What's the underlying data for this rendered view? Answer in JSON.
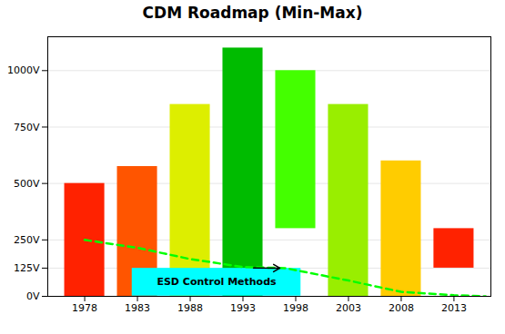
{
  "chart_data": {
    "type": "bar",
    "title": "CDM Roadmap (Min-Max)",
    "x": [
      1978,
      1983,
      1988,
      1993,
      1998,
      2003,
      2008,
      2013
    ],
    "series": [
      {
        "type": "bar",
        "values": [
          500,
          575,
          850,
          1100,
          1000,
          850,
          600,
          300
        ],
        "base": [
          0,
          0,
          0,
          0,
          300,
          0,
          0,
          125
        ],
        "colors": [
          "#FF2200",
          "#FF5500",
          "#DDEE00",
          "#00BB00",
          "#44FF00",
          "#99EE00",
          "#FFCC00",
          "#FF2200"
        ]
      },
      {
        "type": "line",
        "x": [
          1978,
          1983,
          1988,
          1993,
          1997,
          2003,
          2008,
          2013,
          2016
        ],
        "values": [
          250,
          215,
          165,
          130,
          125,
          70,
          20,
          5,
          0
        ],
        "color": "#00FF00",
        "line_style": "dashed"
      },
      {
        "type": "arrow",
        "x": [
          1994,
          1996.5
        ],
        "values": [
          126,
          125
        ]
      }
    ],
    "annotations": [
      {
        "text": "ESD Control Methods",
        "x": [
          1982.5,
          1998.5
        ],
        "y": [
          1,
          124
        ],
        "color": "cyan"
      }
    ],
    "xlim": [
      1974.5,
      2016.5
    ],
    "xticks": [
      1978,
      1983,
      1988,
      1993,
      1998,
      2003,
      2008,
      2013
    ],
    "ylim": [
      0,
      1150
    ],
    "yticks": [
      {
        "value": 0,
        "label": "0V"
      },
      {
        "value": 125,
        "label": "125V"
      },
      {
        "value": 250,
        "label": "250V"
      },
      {
        "value": 500,
        "label": "500V"
      },
      {
        "value": 750,
        "label": "750V"
      },
      {
        "value": 1000,
        "label": "1000V"
      }
    ],
    "grid": true
  }
}
